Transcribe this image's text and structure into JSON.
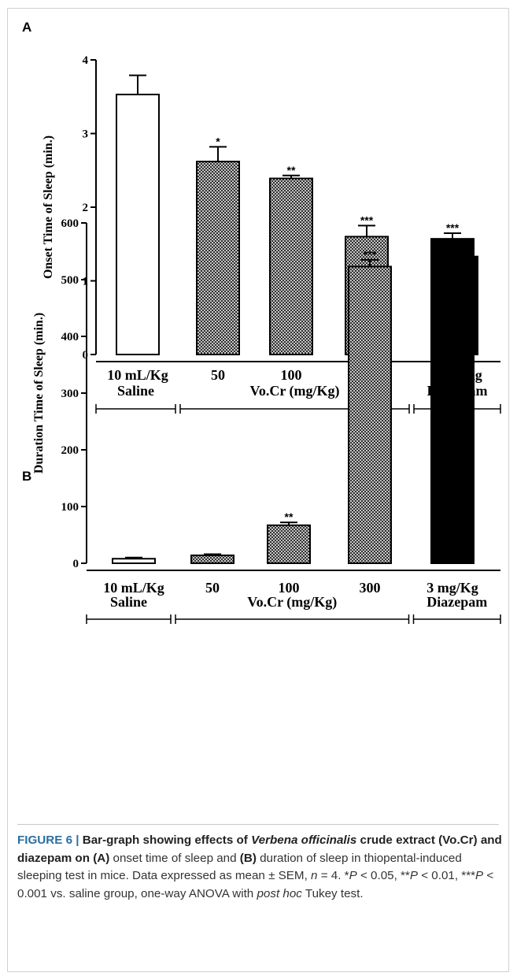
{
  "colors": {
    "bar_outline": "#000000",
    "saline_fill": "#ffffff",
    "crude_fill": "crosshatch",
    "diazepam_fill": "#000000",
    "caption_label": "#2a6fa0"
  },
  "chart_data": [
    {
      "type": "bar",
      "panel_label": "A",
      "ylabel": "Onset Time of Sleep (min.)",
      "ylim": [
        0,
        4
      ],
      "yticks": [
        "0",
        "1",
        "2",
        "3",
        "4"
      ],
      "categories": [
        "10 mL/Kg",
        "50",
        "100",
        "300",
        "3 mg/Kg"
      ],
      "values": [
        3.53,
        2.62,
        2.39,
        1.6,
        1.33
      ],
      "errors": [
        0.26,
        0.2,
        0.04,
        0.15,
        0.04
      ],
      "significance": [
        "",
        "*",
        "**",
        "***",
        "***"
      ],
      "fills": [
        "white",
        "hatch",
        "hatch",
        "hatch",
        "black"
      ],
      "groups": [
        {
          "label": "Saline",
          "from": 0,
          "to": 0
        },
        {
          "label": "Vo.Cr (mg/Kg)",
          "from": 1,
          "to": 3
        },
        {
          "label": "Diazepam",
          "from": 4,
          "to": 4
        }
      ]
    },
    {
      "type": "bar",
      "panel_label": "B",
      "ylabel": "Duration Time of Sleep (min.)",
      "ylim": [
        0,
        600
      ],
      "yticks": [
        "0",
        "100",
        "200",
        "300",
        "400",
        "500",
        "600"
      ],
      "categories": [
        "10 mL/Kg",
        "50",
        "100",
        "300",
        "3 mg/Kg"
      ],
      "values": [
        8,
        14,
        67,
        523,
        572
      ],
      "errors": [
        2,
        2,
        5,
        12,
        10
      ],
      "significance": [
        "",
        "",
        "**",
        "***",
        "***"
      ],
      "fills": [
        "white",
        "hatch",
        "hatch",
        "hatch",
        "black"
      ],
      "groups": [
        {
          "label": "Saline",
          "from": 0,
          "to": 0
        },
        {
          "label": "Vo.Cr (mg/Kg)",
          "from": 1,
          "to": 3
        },
        {
          "label": "Diazepam",
          "from": 4,
          "to": 4
        }
      ]
    }
  ],
  "caption": {
    "figure_label": "FIGURE 6 | ",
    "title_part1": "Bar-graph showing effects of ",
    "title_italic": "Verbena officinalis",
    "title_part2": " crude extract (Vo.Cr) and diazepam on ",
    "panel_a": "(A)",
    "text_a": " onset time of sleep and ",
    "panel_b": "(B)",
    "text_b": " duration of sleep in thiopental-induced sleeping test in mice. Data expressed as mean ± SEM, ",
    "n_italic": "n",
    "text_n": " = 4. *",
    "p1": "P",
    "t1": " < 0.05, **",
    "p2": "P",
    "t2": " < 0.01, ***",
    "p3": "P",
    "t3": " < 0.001 vs. saline group, one-way ANOVA with ",
    "posthoc_italic": "post hoc",
    "t4": " Tukey test."
  }
}
